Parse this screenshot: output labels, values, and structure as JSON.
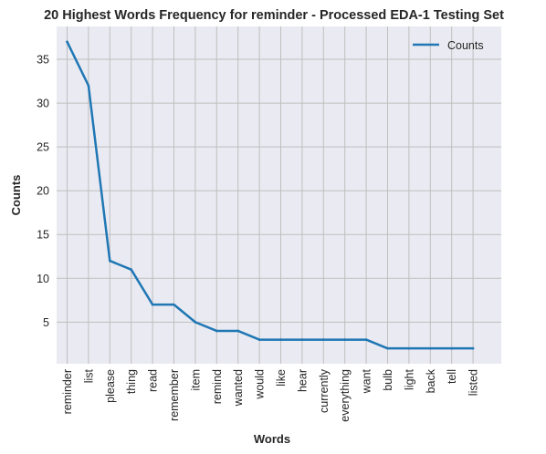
{
  "chart_data": {
    "type": "line",
    "title": "20 Highest Words Frequency for reminder - Processed EDA-1 Testing Set",
    "xlabel": "Words",
    "ylabel": "Counts",
    "categories": [
      "reminder",
      "list",
      "please",
      "thing",
      "read",
      "remember",
      "item",
      "remind",
      "wanted",
      "would",
      "like",
      "hear",
      "currently",
      "everything",
      "want",
      "bulb",
      "light",
      "back",
      "tell",
      "listed"
    ],
    "series": [
      {
        "name": "Counts",
        "values": [
          37,
          32,
          12,
          11,
          7,
          7,
          5,
          4,
          4,
          3,
          3,
          3,
          3,
          3,
          3,
          2,
          2,
          2,
          2,
          2
        ]
      }
    ],
    "ylim": [
      0.25,
      38.75
    ],
    "yticks": [
      5,
      10,
      15,
      20,
      25,
      30,
      35
    ],
    "grid": true,
    "legend_position": "top-right",
    "colors": {
      "line": "#1f77b4",
      "plot_bg": "#eaeaf2",
      "grid": "#bfbfbf"
    }
  }
}
